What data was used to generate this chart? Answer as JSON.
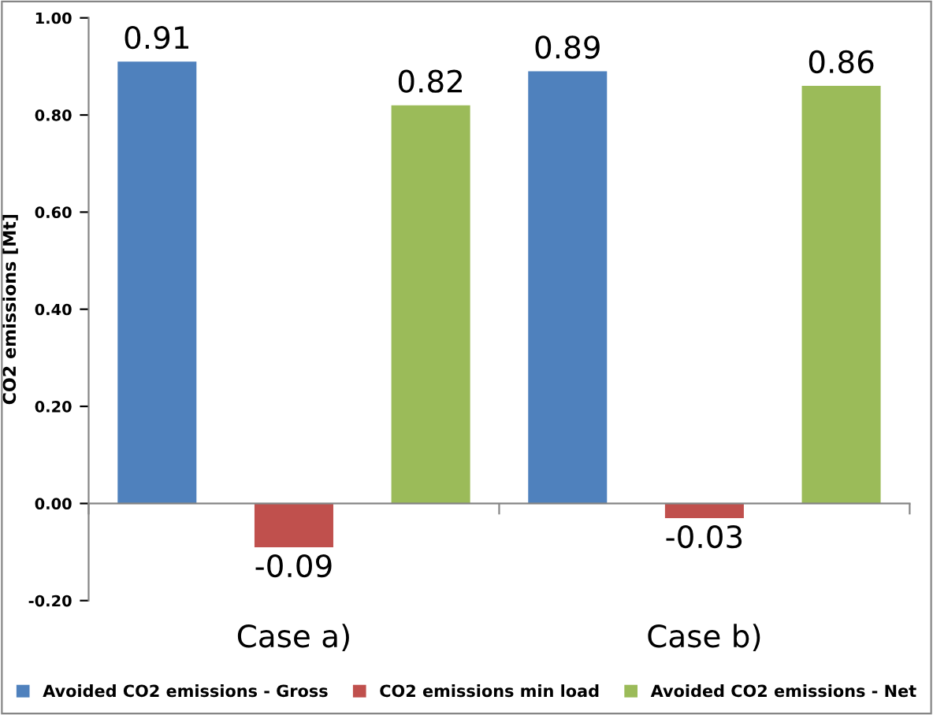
{
  "chart_data": {
    "type": "bar",
    "ylabel": "CO2 emissions [Mt]",
    "categories": [
      "Case a)",
      "Case b)"
    ],
    "series": [
      {
        "name": "Avoided CO2 emissions - Gross",
        "color": "#4f81bd",
        "values": [
          0.91,
          0.89
        ]
      },
      {
        "name": "CO2 emissions min load",
        "color": "#c0504d",
        "values": [
          -0.09,
          -0.03
        ]
      },
      {
        "name": "Avoided CO2 emissions - Net",
        "color": "#9bbb59",
        "values": [
          0.82,
          0.86
        ]
      }
    ],
    "ylim": [
      -0.2,
      1.0
    ],
    "yticks": [
      {
        "value": -0.2,
        "label": "-0.20"
      },
      {
        "value": 0,
        "label": "0.00"
      },
      {
        "value": 0.2,
        "label": "0.20"
      },
      {
        "value": 0.4,
        "label": "0.40"
      },
      {
        "value": 0.6,
        "label": "0.60"
      },
      {
        "value": 0.8,
        "label": "0.80"
      },
      {
        "value": 1.0,
        "label": "1.00"
      }
    ],
    "data_labels": true,
    "legend": "bottom"
  }
}
